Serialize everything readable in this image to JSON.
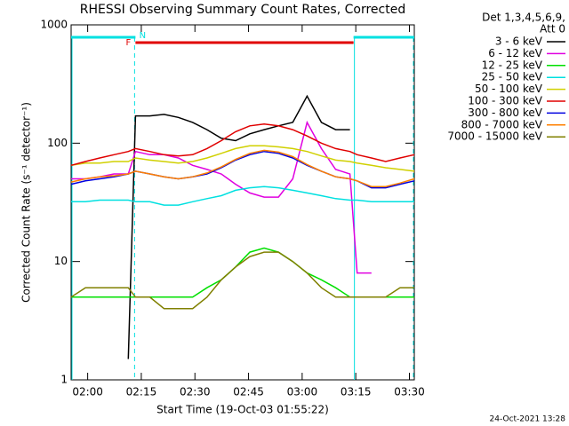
{
  "chart_data": {
    "type": "line",
    "title": "RHESSI Observing Summary Count Rates, Corrected",
    "x_label": "Start Time (19-Oct-03 01:55:22)",
    "y_label": "Corrected Count Rate (s⁻¹ detector⁻¹)",
    "legend_header": [
      "Det 1,3,4,5,6,9,",
      "Att 0"
    ],
    "timestamp": "24-Oct-2021 13:28",
    "log_y": true,
    "legend": "outside-right",
    "xlim": [
      0,
      96
    ],
    "ylim": [
      1,
      1000
    ],
    "yticks": [
      1,
      10,
      100,
      1000
    ],
    "xticks": [
      {
        "value": 4.63,
        "label": "02:00"
      },
      {
        "value": 19.63,
        "label": "02:15"
      },
      {
        "value": 34.63,
        "label": "02:30"
      },
      {
        "value": 49.63,
        "label": "02:45"
      },
      {
        "value": 64.63,
        "label": "03:00"
      },
      {
        "value": 79.63,
        "label": "03:15"
      },
      {
        "value": 94.63,
        "label": "03:30"
      }
    ],
    "flags": [
      {
        "label": "F",
        "color": "#e00000",
        "intervals": [
          [
            18,
            79
          ]
        ]
      },
      {
        "label": "N",
        "color": "#00e0e0",
        "intervals": [
          [
            0,
            18
          ],
          [
            79,
            96
          ]
        ]
      }
    ],
    "x": [
      0,
      4,
      8,
      12,
      16,
      18,
      22,
      26,
      30,
      34,
      38,
      42,
      46,
      50,
      54,
      58,
      62,
      66,
      70,
      74,
      78,
      80,
      84,
      88,
      92,
      96
    ],
    "series": [
      {
        "name": "3 - 6 keV",
        "color": "#000000",
        "values": [
          null,
          null,
          null,
          null,
          1.5,
          170,
          170,
          175,
          165,
          150,
          130,
          110,
          105,
          120,
          130,
          140,
          150,
          250,
          150,
          130,
          130,
          null,
          null,
          null,
          null,
          null
        ]
      },
      {
        "name": "6 - 12 keV",
        "color": "#e000e0",
        "values": [
          50,
          50,
          52,
          55,
          55,
          85,
          80,
          80,
          75,
          65,
          60,
          55,
          45,
          38,
          35,
          35,
          50,
          150,
          90,
          60,
          55,
          8,
          8,
          null,
          null,
          null
        ]
      },
      {
        "name": "12 - 25 keV",
        "color": "#00e000",
        "values": [
          5,
          5,
          5,
          5,
          5,
          5,
          5,
          5,
          5,
          5,
          6,
          7,
          9,
          12,
          13,
          12,
          10,
          8,
          7,
          6,
          5,
          5,
          5,
          5,
          5,
          5
        ]
      },
      {
        "name": "25 - 50 keV",
        "color": "#00e0e0",
        "values": [
          32,
          32,
          33,
          33,
          33,
          32,
          32,
          30,
          30,
          32,
          34,
          36,
          40,
          42,
          43,
          42,
          40,
          38,
          36,
          34,
          33,
          33,
          32,
          32,
          32,
          32
        ]
      },
      {
        "name": "50 - 100 keV",
        "color": "#d0d000",
        "values": [
          65,
          68,
          68,
          70,
          70,
          75,
          72,
          70,
          68,
          70,
          75,
          82,
          90,
          95,
          95,
          93,
          90,
          85,
          78,
          72,
          70,
          68,
          65,
          62,
          60,
          58
        ]
      },
      {
        "name": "100 - 300 keV",
        "color": "#e00000",
        "values": [
          65,
          70,
          75,
          80,
          85,
          90,
          85,
          80,
          78,
          80,
          90,
          105,
          125,
          140,
          145,
          140,
          130,
          115,
          100,
          90,
          85,
          80,
          75,
          70,
          75,
          80
        ]
      },
      {
        "name": "300 - 800 keV",
        "color": "#0000e0",
        "values": [
          45,
          48,
          50,
          52,
          55,
          58,
          55,
          52,
          50,
          52,
          55,
          62,
          72,
          80,
          85,
          82,
          75,
          65,
          58,
          52,
          50,
          48,
          42,
          42,
          45,
          48
        ]
      },
      {
        "name": "800 - 7000 keV",
        "color": "#ff8000",
        "values": [
          47,
          50,
          52,
          53,
          55,
          58,
          55,
          52,
          50,
          52,
          56,
          63,
          73,
          82,
          87,
          84,
          77,
          66,
          58,
          52,
          50,
          48,
          43,
          43,
          46,
          50
        ]
      },
      {
        "name": "7000 - 15000 keV",
        "color": "#808000",
        "values": [
          5,
          6,
          6,
          6,
          6,
          5,
          5,
          4,
          4,
          4,
          5,
          7,
          9,
          11,
          12,
          12,
          10,
          8,
          6,
          5,
          5,
          5,
          5,
          5,
          6,
          6
        ]
      }
    ]
  }
}
